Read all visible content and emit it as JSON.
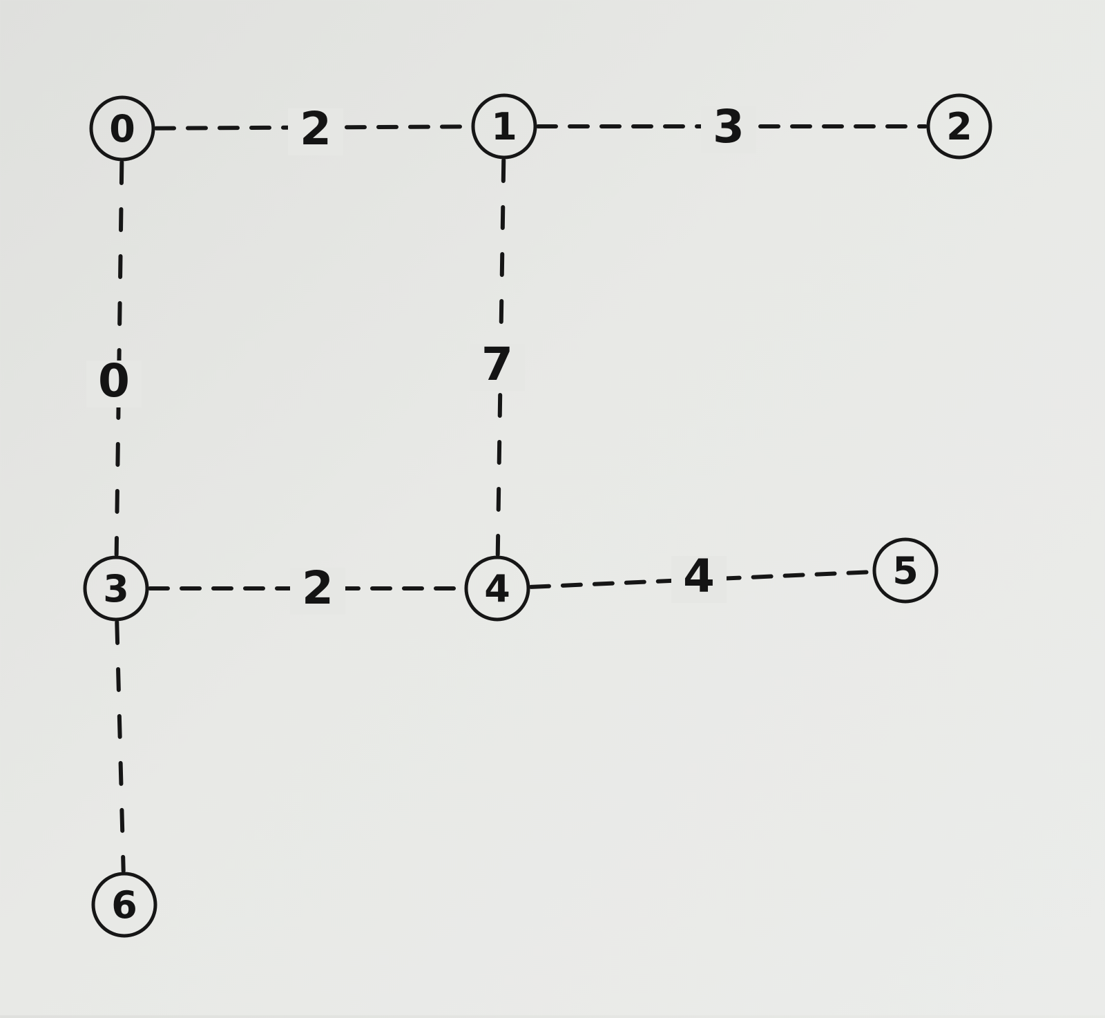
{
  "graph": {
    "nodes": [
      {
        "id": "n0",
        "label": "0"
      },
      {
        "id": "n1",
        "label": "1"
      },
      {
        "id": "n2",
        "label": "2"
      },
      {
        "id": "n3",
        "label": "3"
      },
      {
        "id": "n4",
        "label": "4"
      },
      {
        "id": "n5",
        "label": "5"
      },
      {
        "id": "n6",
        "label": "6"
      }
    ],
    "edges": [
      {
        "from": "n0",
        "to": "n1",
        "weight": "2"
      },
      {
        "from": "n1",
        "to": "n2",
        "weight": "3"
      },
      {
        "from": "n0",
        "to": "n3",
        "weight": "0"
      },
      {
        "from": "n1",
        "to": "n4",
        "weight": "7"
      },
      {
        "from": "n3",
        "to": "n4",
        "weight": "2"
      },
      {
        "from": "n4",
        "to": "n5",
        "weight": "4"
      },
      {
        "from": "n3",
        "to": "n6",
        "weight": ""
      }
    ]
  }
}
